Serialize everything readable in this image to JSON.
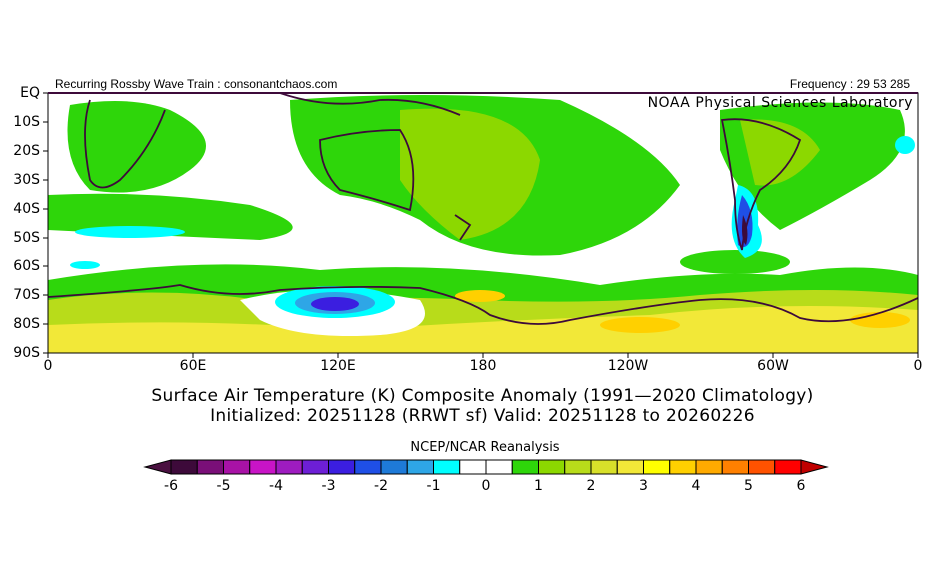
{
  "header": {
    "left": "Recurring Rossby Wave Train : consonantchaos.com",
    "right": "Frequency : 29 53 285",
    "lab": "NOAA Physical Sciences Laboratory"
  },
  "title": {
    "line1": "Surface Air Temperature (K) Composite Anomaly (1991—2020 Climatology)",
    "line2": "Initialized: 20251128 (RRWT sf) Valid: 20251128 to 20260226"
  },
  "axes": {
    "lat_labels": [
      "EQ",
      "10S",
      "20S",
      "30S",
      "40S",
      "50S",
      "60S",
      "70S",
      "80S",
      "90S"
    ],
    "lon_labels": [
      "0",
      "60E",
      "120E",
      "180",
      "120W",
      "60W",
      "0"
    ]
  },
  "colorbar": {
    "title": "NCEP/NCAR Reanalysis",
    "tick_labels": [
      "-6",
      "-5",
      "-4",
      "-3",
      "-2",
      "-1",
      "0",
      "1",
      "2",
      "3",
      "4",
      "5",
      "6"
    ],
    "colors": [
      "#3d0a3a",
      "#7a0f78",
      "#a812a6",
      "#c814c6",
      "#9e1cc0",
      "#6d1fd6",
      "#3b1ee0",
      "#1f4fe6",
      "#1e7ad8",
      "#2ea6e6",
      "#00ffff",
      "#ffffff",
      "#ffffff",
      "#2ed60a",
      "#8cd800",
      "#b8dc1a",
      "#d8e02a",
      "#f2e838",
      "#ffff00",
      "#ffd000",
      "#ffaa00",
      "#ff8000",
      "#ff5200",
      "#ff0000"
    ],
    "under_color": "#4a1040",
    "over_color": "#c00000"
  },
  "chart_data": {
    "type": "heatmap",
    "title": "Surface Air Temperature (K) Composite Anomaly (1991-2020 Climatology)",
    "variable": "Surface Air Temperature anomaly (K)",
    "lat_range": [
      -90,
      0
    ],
    "lon_range": [
      0,
      360
    ],
    "color_levels": [
      -6,
      -5.5,
      -5,
      -4.5,
      -4,
      -3.5,
      -3,
      -2.5,
      -2,
      -1.5,
      -1,
      -0.5,
      0,
      0.5,
      1,
      1.5,
      2,
      2.5,
      3,
      3.5,
      4,
      4.5,
      5,
      5.5,
      6
    ],
    "features": [
      {
        "region": "East Antarctic coast ~120E, 70-75S",
        "anomaly": -2.5
      },
      {
        "region": "Patagonia ~70W, 35-55S",
        "anomaly": -2.5
      },
      {
        "region": "Southern Indian Ocean ~20-40E, 45S",
        "anomaly": -1
      },
      {
        "region": "Interior Antarctica / Ross-Weddell",
        "anomaly": 3
      },
      {
        "region": "Australia / Tasman Sea",
        "anomaly": 1.5
      },
      {
        "region": "South Atlantic 10-20S",
        "anomaly": 1
      }
    ]
  }
}
